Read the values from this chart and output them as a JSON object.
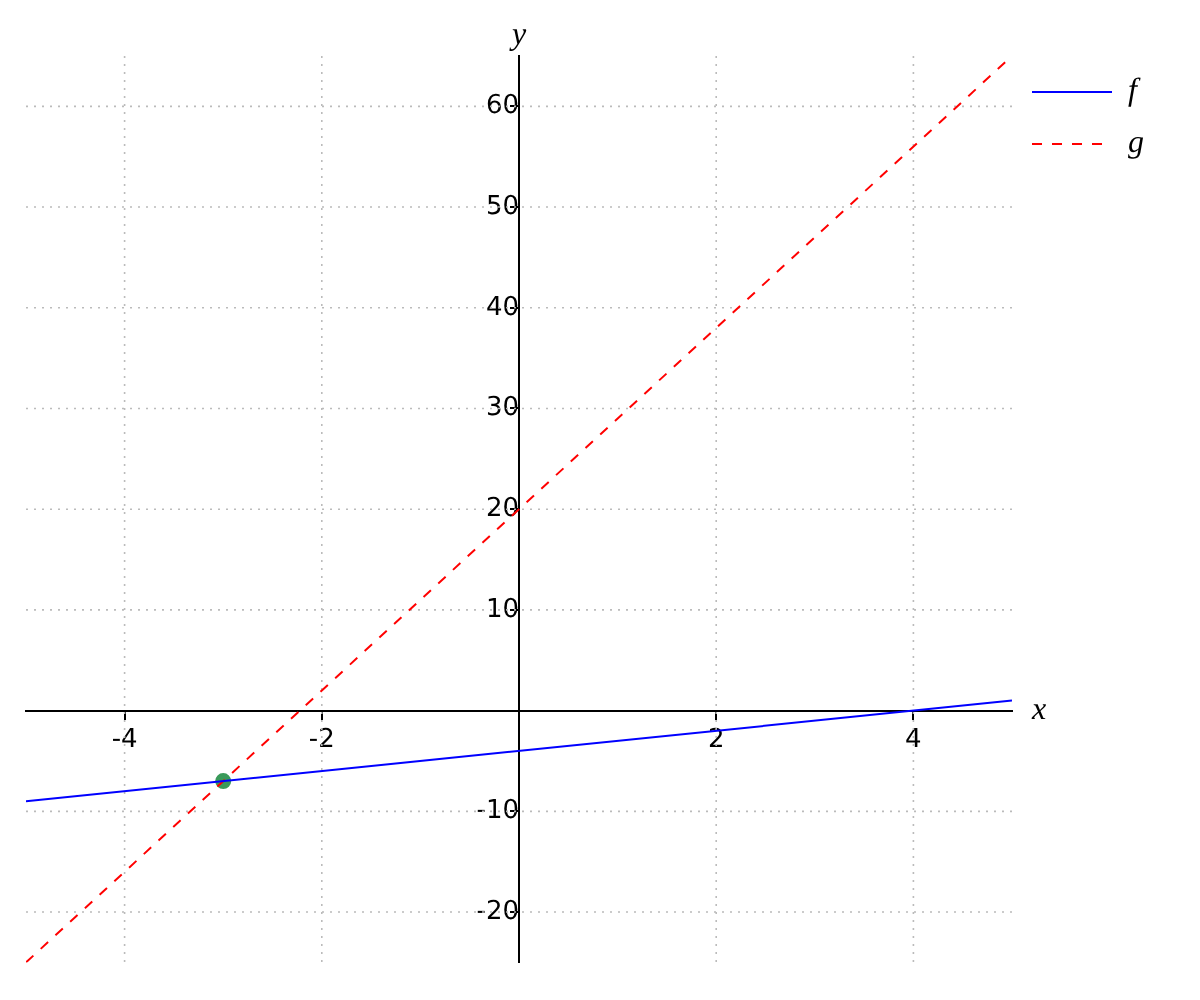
{
  "chart_data": {
    "type": "line",
    "xlabel": "x",
    "ylabel": "y",
    "x": [
      -5,
      5
    ],
    "series": [
      {
        "name": "f",
        "color": "#0000ff",
        "values": [
          -9,
          1
        ],
        "line_style": "solid"
      },
      {
        "name": "g",
        "color": "#ff0000",
        "values": [
          -25,
          65
        ],
        "line_style": "dashed"
      },
      {
        "type": "scatter",
        "color": "#3a9a5a",
        "x": [
          -3
        ],
        "values": [
          -7
        ],
        "marker": "circle"
      }
    ],
    "xlim": [
      -5,
      5
    ],
    "ylim": [
      -25,
      65
    ],
    "xticks": [
      -4,
      -2,
      2,
      4
    ],
    "yticks": [
      -20,
      -10,
      10,
      20,
      30,
      40,
      50,
      60
    ],
    "grid": true,
    "legend": "top right"
  }
}
